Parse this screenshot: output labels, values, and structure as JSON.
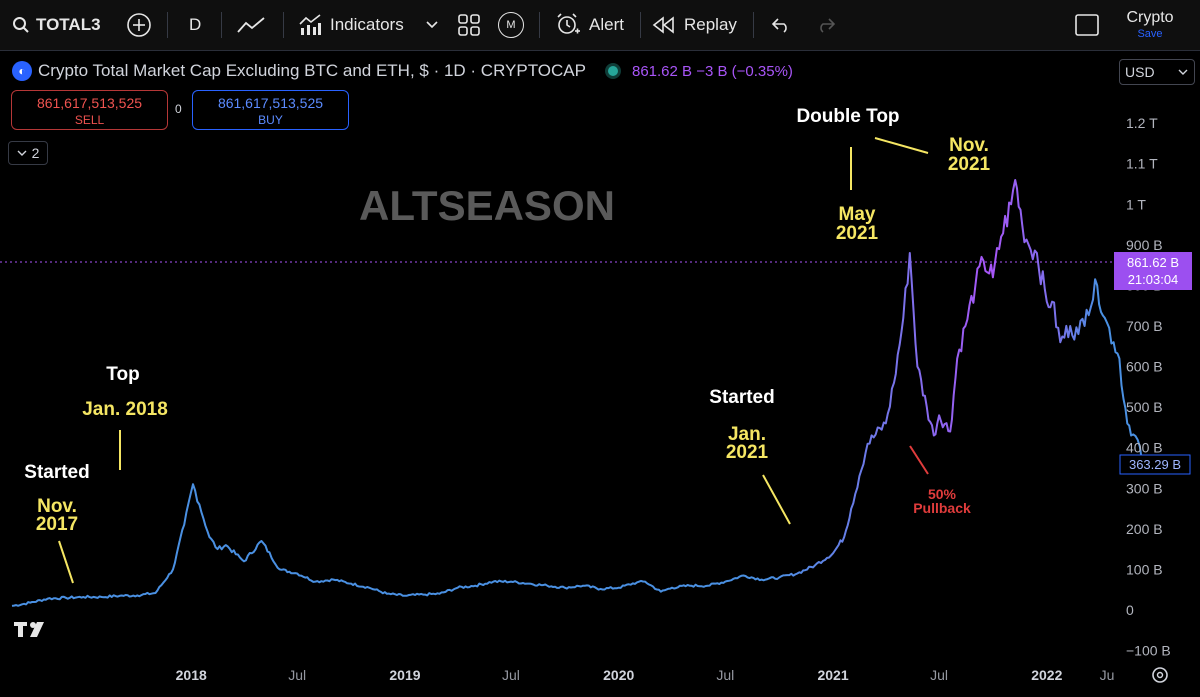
{
  "toolbar": {
    "symbol": "TOTAL3",
    "interval": "D",
    "indicators_label": "Indicators",
    "templates_letter": "M",
    "alert_label": "Alert",
    "replay_label": "Replay",
    "layout_name": "Crypto",
    "save_label": "Save"
  },
  "legend": {
    "title": "Crypto Total Market Cap Excluding BTC and ETH, $ · 1D · CRYPTOCAP",
    "values": "861.62 B  −3 B (−0.35%)",
    "currency": "USD"
  },
  "trade": {
    "sell_price": "861,617,513,525",
    "sell_label": "SELL",
    "spread": "0",
    "buy_price": "861,617,513,525",
    "buy_label": "BUY"
  },
  "collapse_count": "2",
  "colors": {
    "background": "#000000",
    "line_blue": "#4a90e2",
    "line_purple": "#a855f7",
    "annotation_yellow": "#f5e663",
    "annotation_red": "#e03c3c",
    "watermark": "#5a5a5a"
  },
  "chart_data": {
    "type": "line",
    "title": "",
    "watermark": "ALTSEASON",
    "xlabel": "",
    "ylabel": "",
    "ylim": [
      -100,
      1300
    ],
    "y_unit": "billion USD",
    "x_tick_labels": [
      "2018",
      "Jul",
      "2019",
      "Jul",
      "2020",
      "Jul",
      "2021",
      "Jul",
      "2022",
      "Ju"
    ],
    "y_tick_labels": [
      "−100 B",
      "0",
      "100 B",
      "200 B",
      "300 B",
      "400 B",
      "500 B",
      "600 B",
      "700 B",
      "800 B",
      "900 B",
      "1 T",
      "1.1 T",
      "1.2 T"
    ],
    "current_price_label": "861.62 B",
    "current_time_label": "21:03:04",
    "reference_label": "363.29 B",
    "series": [
      {
        "x": [
          "2017-03-01",
          "2017-04-01",
          "2017-05-01",
          "2017-06-01",
          "2017-07-01",
          "2017-08-01",
          "2017-09-01",
          "2017-10-01",
          "2017-11-01",
          "2017-12-01",
          "2017-12-20",
          "2018-01-04",
          "2018-01-15",
          "2018-02-01",
          "2018-02-15",
          "2018-03-01",
          "2018-04-01",
          "2018-05-01",
          "2018-06-01",
          "2018-07-01",
          "2018-08-01",
          "2018-09-01",
          "2018-10-01",
          "2018-11-01",
          "2018-12-01",
          "2019-01-01",
          "2019-02-01",
          "2019-03-01",
          "2019-04-01",
          "2019-05-01",
          "2019-06-01",
          "2019-07-01",
          "2019-08-01",
          "2019-09-01",
          "2019-10-01",
          "2019-11-01",
          "2019-12-01",
          "2020-01-01",
          "2020-02-01",
          "2020-02-15",
          "2020-03-13",
          "2020-04-01",
          "2020-05-01",
          "2020-06-01",
          "2020-07-01",
          "2020-08-01",
          "2020-09-01",
          "2020-10-01",
          "2020-11-01",
          "2020-12-01",
          "2021-01-01",
          "2021-01-20",
          "2021-02-01",
          "2021-02-15",
          "2021-03-01",
          "2021-04-01",
          "2021-04-15",
          "2021-05-01",
          "2021-05-12",
          "2021-05-25",
          "2021-06-10",
          "2021-06-22",
          "2021-07-01",
          "2021-07-20",
          "2021-08-01",
          "2021-08-15",
          "2021-09-01",
          "2021-09-15",
          "2021-10-01",
          "2021-10-15",
          "2021-11-01",
          "2021-11-08",
          "2021-11-20",
          "2021-12-01",
          "2021-12-15",
          "2022-01-01",
          "2022-01-10",
          "2022-01-24",
          "2022-02-10",
          "2022-02-24",
          "2022-03-10",
          "2022-03-28",
          "2022-04-10",
          "2022-04-25",
          "2022-05-05",
          "2022-05-12",
          "2022-05-25",
          "2022-06-05",
          "2022-06-13",
          "2022-06-20",
          "2022-06-28"
        ],
        "y": [
          10,
          18,
          28,
          30,
          32,
          32,
          35,
          36,
          42,
          100,
          210,
          310,
          260,
          180,
          150,
          160,
          120,
          170,
          100,
          90,
          70,
          75,
          65,
          55,
          40,
          35,
          38,
          40,
          55,
          60,
          70,
          70,
          65,
          60,
          55,
          60,
          52,
          55,
          68,
          70,
          45,
          55,
          60,
          60,
          70,
          85,
          75,
          80,
          90,
          110,
          140,
          180,
          250,
          330,
          410,
          460,
          560,
          720,
          880,
          600,
          500,
          430,
          480,
          440,
          620,
          700,
          800,
          860,
          820,
          920,
          1000,
          1060,
          950,
          900,
          880,
          760,
          760,
          660,
          700,
          680,
          740,
          800,
          720,
          660,
          620,
          520,
          430,
          420,
          360,
          380,
          360
        ]
      }
    ]
  },
  "annotations": {
    "started_2017": "Started",
    "nov_2017_line1": "Nov.",
    "nov_2017_line2": "2017",
    "top_2018": "Top",
    "jan_2018": "Jan. 2018",
    "started_2021": "Started",
    "jan_2021_line1": "Jan.",
    "jan_2021_line2": "2021",
    "double_top": "Double Top",
    "may_2021_line1": "May",
    "may_2021_line2": "2021",
    "nov_2021_line1": "Nov.",
    "nov_2021_line2": "2021",
    "pullback_line1": "50%",
    "pullback_line2": "Pullback"
  }
}
